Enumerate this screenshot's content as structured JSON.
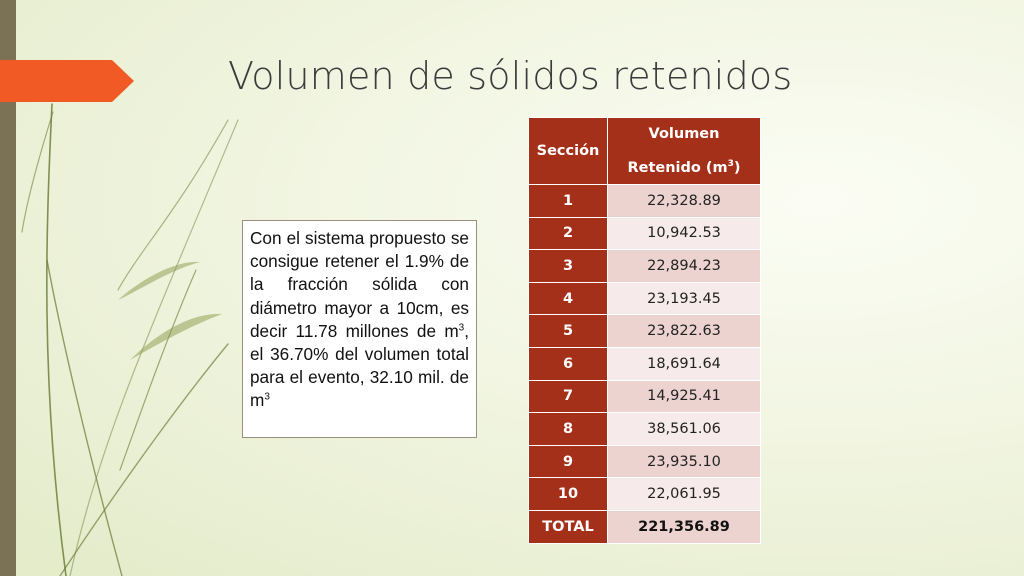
{
  "slide": {
    "title": "Volumen de sólidos retenidos",
    "colors": {
      "accent": "#f15a24",
      "table_header": "#a5301a",
      "bar": "#7b7155"
    }
  },
  "textbox": {
    "part1": "Con el sistema propuesto se consigue retener el 1.9% de la fracción sólida con diámetro mayor a 10cm, es decir 11.78 millones de m",
    "sup1": "3",
    "part2": ", el 36.70% del volumen total para el evento, 32.10 mil. de m",
    "sup2": "3"
  },
  "table": {
    "headers": {
      "section": "Sección",
      "volume_line1": "Volumen",
      "volume_line2": "Retenido (m",
      "volume_sup": "3",
      "volume_close": ")"
    },
    "rows": [
      {
        "section": "1",
        "value": "22,328.89"
      },
      {
        "section": "2",
        "value": "10,942.53"
      },
      {
        "section": "3",
        "value": "22,894.23"
      },
      {
        "section": "4",
        "value": "23,193.45"
      },
      {
        "section": "5",
        "value": "23,822.63"
      },
      {
        "section": "6",
        "value": "18,691.64"
      },
      {
        "section": "7",
        "value": "14,925.41"
      },
      {
        "section": "8",
        "value": "38,561.06"
      },
      {
        "section": "9",
        "value": "23,935.10"
      },
      {
        "section": "10",
        "value": "22,061.95"
      }
    ],
    "total": {
      "label": "TOTAL",
      "value": "221,356.89"
    }
  }
}
